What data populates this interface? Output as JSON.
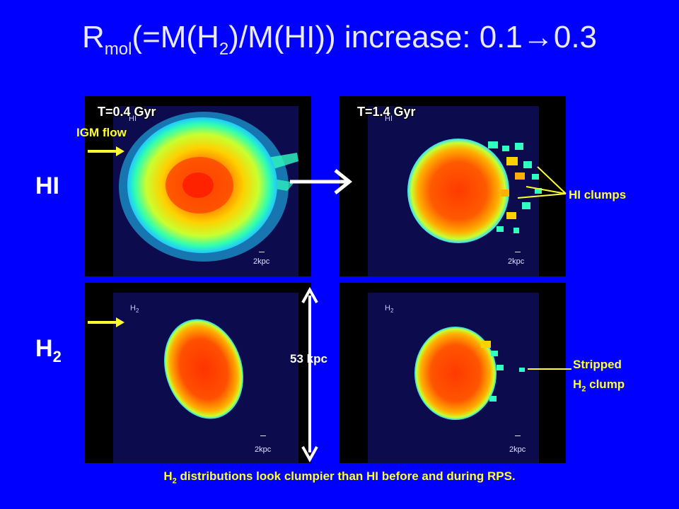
{
  "title": {
    "prefix": "R",
    "sub": "mol",
    "mid1": "(=M(H",
    "sub2": "2",
    "mid2": ")/M(HI)) increase: 0.1",
    "arrow": "→",
    "end": "0.3"
  },
  "rows": {
    "hi": "HI",
    "h2_main": "H",
    "h2_sub": "2"
  },
  "times": {
    "left": "T=0.4  Gyr",
    "right": "T=1.4 Gyr"
  },
  "panels": {
    "hi_label": "HI",
    "h2_label_main": "H",
    "h2_label_sub": "2",
    "scale": "2kpc"
  },
  "annotations": {
    "igm_flow": "IGM flow",
    "hi_clumps": "HI clumps",
    "stripped_line1": "Stripped",
    "stripped_h": "H",
    "stripped_sub": "2",
    "stripped_rest": " clump",
    "size": "53  kpc"
  },
  "caption": {
    "h": "H",
    "sub": "2",
    "rest": " distributions look clumpier than HI before and during RPS."
  },
  "colors": {
    "background": "#0000ff",
    "annotation": "#ffff33"
  }
}
